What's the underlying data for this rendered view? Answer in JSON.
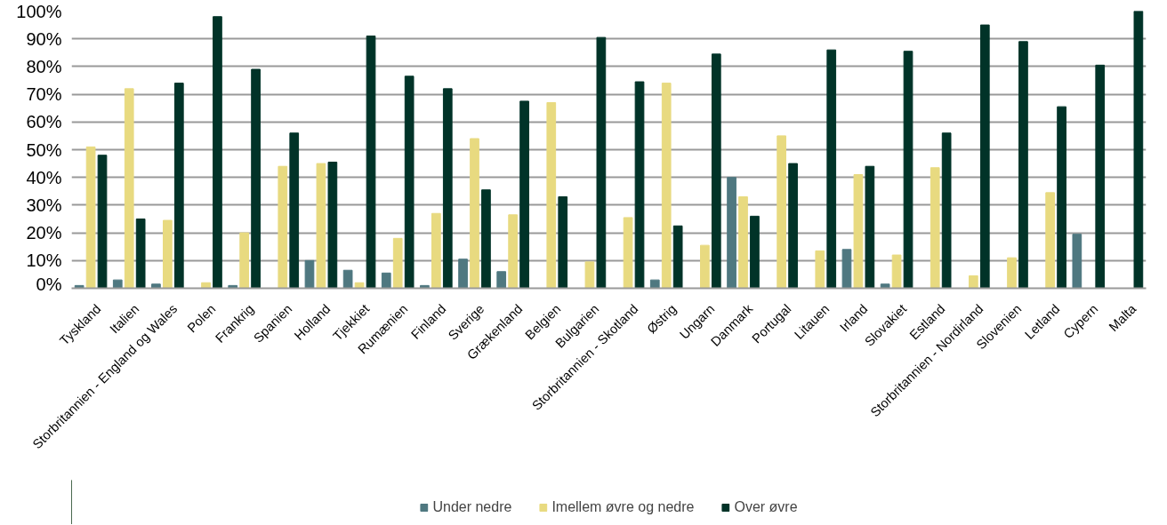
{
  "chart_data": {
    "type": "bar",
    "categories": [
      "Tyskland",
      "Italien",
      "Storbritannien - England og Wales",
      "Polen",
      "Frankrig",
      "Spanien",
      "Holland",
      "Tjekkiet",
      "Rumænien",
      "Finland",
      "Sverige",
      "Grækenland",
      "Belgien",
      "Bulgarien",
      "Storbritannien - Skotland",
      "Østrig",
      "Ungarn",
      "Danmark",
      "Portugal",
      "Litauen",
      "Irland",
      "Slovakiet",
      "Estland",
      "Storbritannien - Nordirland",
      "Slovenien",
      "Letland",
      "Cypern",
      "Malta"
    ],
    "series": [
      {
        "name": "Under nedre",
        "color": "#4f7880",
        "values": [
          1,
          3,
          1.5,
          0,
          1,
          0,
          10,
          6.5,
          5.5,
          1,
          10.5,
          6,
          0,
          0,
          0,
          3,
          0,
          40,
          0,
          0,
          14,
          1.5,
          0,
          0,
          0,
          0,
          19.5,
          0
        ]
      },
      {
        "name": "Imellem øvre og nedre",
        "color": "#e8da80",
        "values": [
          51,
          72,
          24.5,
          2,
          20,
          44,
          45,
          2,
          18,
          27,
          54,
          26.5,
          67,
          9.5,
          25.5,
          74,
          15.5,
          33,
          55,
          13.5,
          41,
          12,
          43.5,
          4.5,
          11,
          34.5,
          0,
          0
        ]
      },
      {
        "name": "Over øvre",
        "color": "#013328",
        "values": [
          48,
          25,
          74,
          98,
          79,
          56,
          45.5,
          91,
          76.5,
          72,
          35.5,
          67.5,
          33,
          90.5,
          74.5,
          22.5,
          84.5,
          26,
          45,
          86,
          44,
          85.5,
          56,
          95,
          89,
          65.5,
          80.5,
          100
        ]
      }
    ],
    "ylim": [
      0,
      100
    ],
    "yticks": [
      {
        "value": 0,
        "label": "0%"
      },
      {
        "value": 10,
        "label": "10%"
      },
      {
        "value": 20,
        "label": "20%"
      },
      {
        "value": 30,
        "label": "30%"
      },
      {
        "value": 40,
        "label": "40%"
      },
      {
        "value": 50,
        "label": "50%"
      },
      {
        "value": 60,
        "label": "60%"
      },
      {
        "value": 70,
        "label": "70%"
      },
      {
        "value": 80,
        "label": "80%"
      },
      {
        "value": 90,
        "label": "90%"
      },
      {
        "value": 100,
        "label": "100%"
      }
    ],
    "grid": "y",
    "legend": "bottom"
  }
}
